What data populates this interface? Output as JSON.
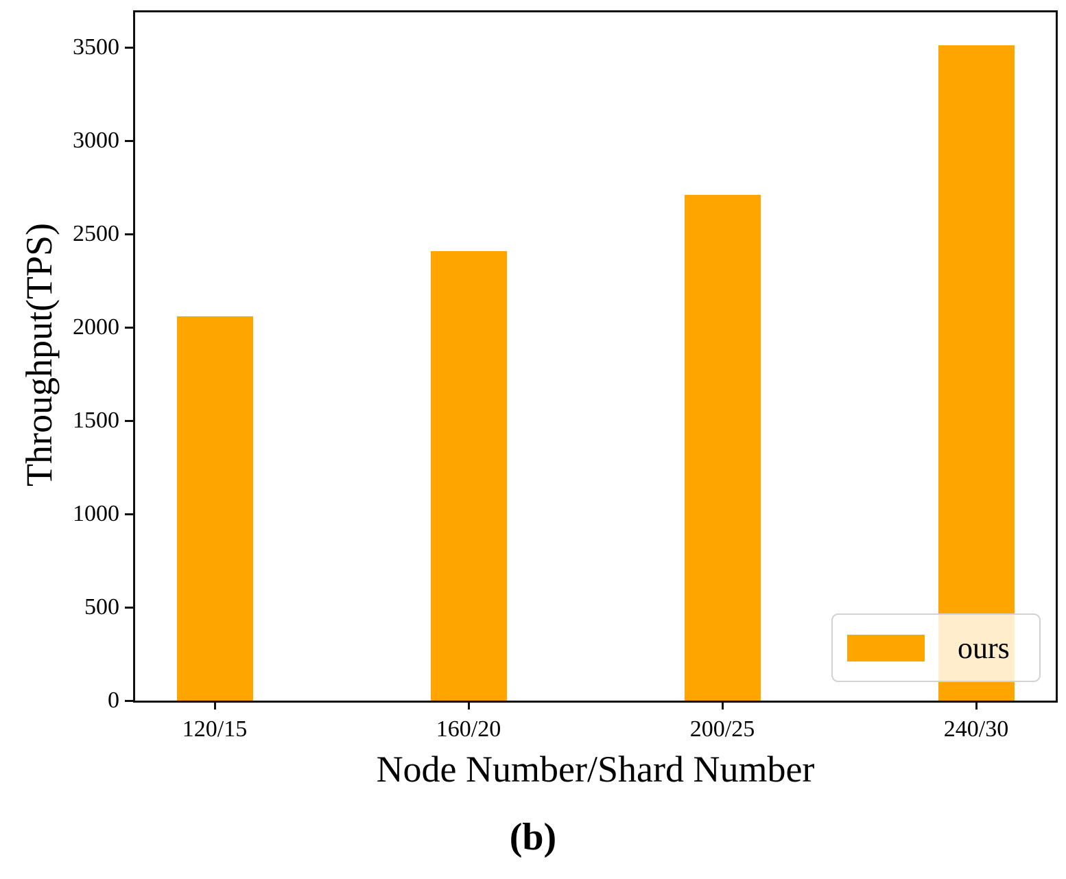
{
  "chart_data": {
    "type": "bar",
    "title": "",
    "xlabel": "Node Number/Shard Number",
    "ylabel": "Throughput(TPS)",
    "categories": [
      "120/15",
      "160/20",
      "200/25",
      "240/30"
    ],
    "values": [
      2060,
      2410,
      2710,
      3510
    ],
    "series": [
      {
        "name": "ours",
        "values": [
          2060,
          2410,
          2710,
          3510
        ]
      }
    ],
    "ylim": [
      0,
      3688
    ],
    "yticks": [
      0,
      500,
      1000,
      1500,
      2000,
      2500,
      3000,
      3500
    ],
    "grid": false,
    "legend": {
      "position": "lower right",
      "entries": [
        "ours"
      ]
    },
    "bar_color": "#FFA500"
  },
  "caption": "(b)",
  "colors": {
    "bar": "#FFA500",
    "axis": "#111111",
    "legend_border": "#d2d2d2",
    "text": "#000000"
  }
}
